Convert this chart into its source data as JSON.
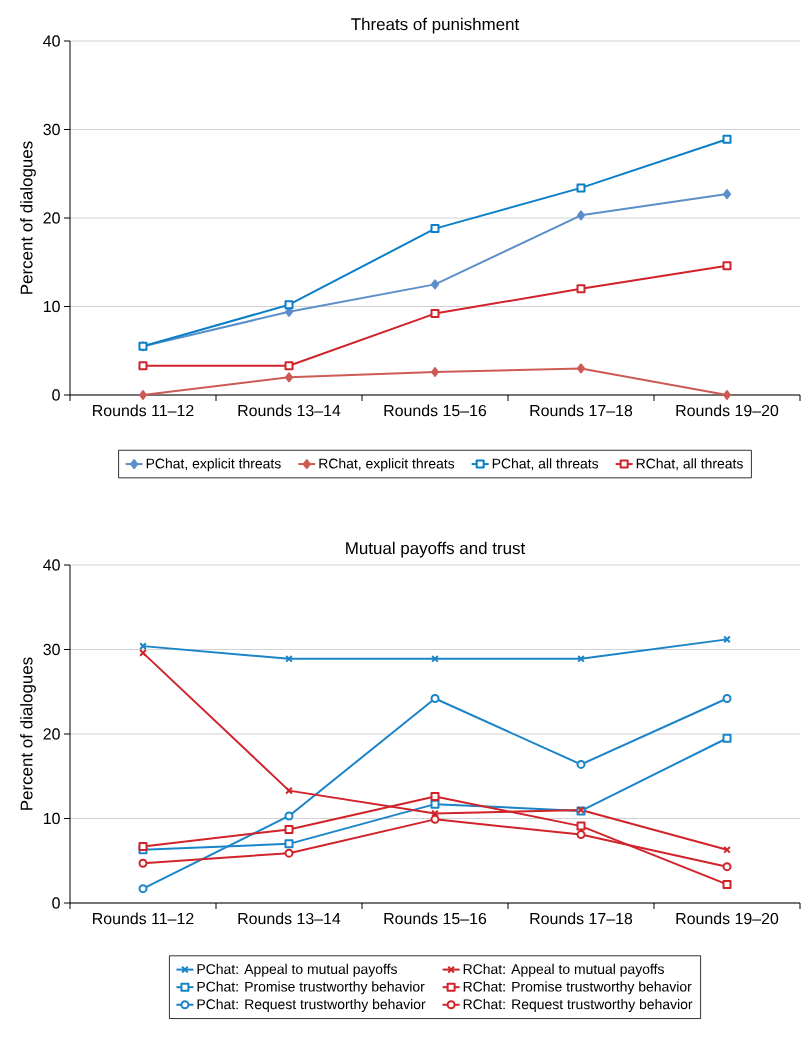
{
  "chart_data": [
    {
      "type": "line",
      "title": "Threats of punishment",
      "ylabel": "Percent of dialogues",
      "categories": [
        "Rounds 11–12",
        "Rounds 13–14",
        "Rounds 15–16",
        "Rounds 17–18",
        "Rounds 19–20"
      ],
      "ylim": [
        0,
        40
      ],
      "yticks": [
        0,
        10,
        20,
        30,
        40
      ],
      "grid": "y",
      "legend": "bottom",
      "series": [
        {
          "name": "PChat, explicit threats",
          "color": "#5b8fc9",
          "marker": "diamond",
          "values": [
            5.5,
            9.4,
            12.5,
            20.3,
            22.7
          ]
        },
        {
          "name": "RChat, explicit threats",
          "color": "#cd5b55",
          "marker": "diamond",
          "values": [
            0,
            2.0,
            2.6,
            3.0,
            0
          ]
        },
        {
          "name": "PChat, all threats",
          "color": "#0a7fc8",
          "marker": "square",
          "values": [
            5.5,
            10.2,
            18.8,
            23.4,
            28.9
          ]
        },
        {
          "name": "RChat, all threats",
          "color": "#d0232a",
          "marker": "square",
          "values": [
            3.3,
            3.3,
            9.2,
            12.0,
            14.6
          ]
        }
      ]
    },
    {
      "type": "line",
      "title": "Mutual payoffs and trust",
      "ylabel": "Percent of dialogues",
      "categories": [
        "Rounds 11–12",
        "Rounds 13–14",
        "Rounds 15–16",
        "Rounds 17–18",
        "Rounds 19–20"
      ],
      "ylim": [
        0,
        40
      ],
      "yticks": [
        0,
        10,
        20,
        30,
        40
      ],
      "grid": "y",
      "legend": "bottom",
      "series": [
        {
          "name": "PChat: Appeal to mutual payoffs",
          "color": "#1a84c8",
          "marker": "cross",
          "values": [
            30.4,
            28.9,
            28.9,
            28.9,
            31.2
          ]
        },
        {
          "name": "PChat: Promise trustworthy behavior",
          "color": "#1a84c8",
          "marker": "square",
          "values": [
            6.3,
            7.0,
            11.7,
            10.9,
            19.5
          ]
        },
        {
          "name": "PChat: Request trustworthy behavior",
          "color": "#1a84c8",
          "marker": "circle",
          "values": [
            1.7,
            10.3,
            24.2,
            16.4,
            24.2
          ]
        },
        {
          "name": "RChat: Appeal to mutual payoffs",
          "color": "#d0232a",
          "marker": "cross",
          "values": [
            29.6,
            13.3,
            10.6,
            11.0,
            6.3
          ]
        },
        {
          "name": "RChat: Promise trustworthy behavior",
          "color": "#d0232a",
          "marker": "square",
          "values": [
            6.7,
            8.7,
            12.6,
            9.1,
            2.2
          ]
        },
        {
          "name": "RChat: Request trustworthy behavior",
          "color": "#d0232a",
          "marker": "circle",
          "values": [
            4.7,
            5.9,
            9.9,
            8.1,
            4.3
          ]
        }
      ]
    }
  ]
}
